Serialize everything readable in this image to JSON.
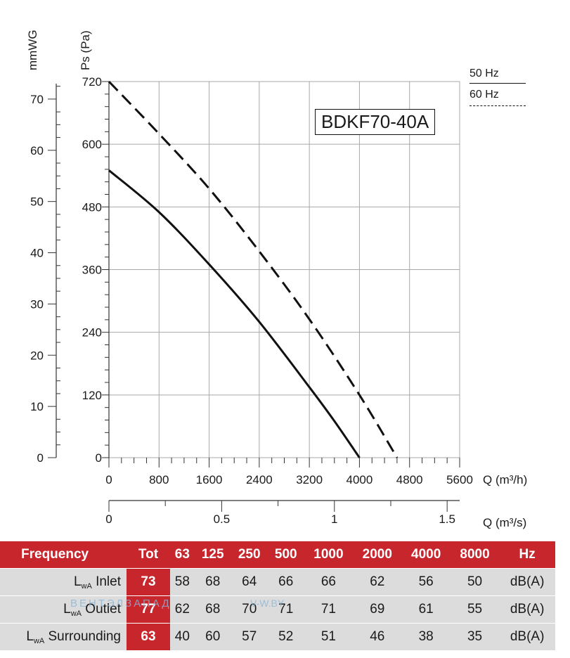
{
  "chart_data": {
    "type": "line",
    "title": "BDKF70-40A",
    "xlabel": "Q (m³/h)",
    "x2label": "Q (m³/s)",
    "ylabel": "Ps (Pa)",
    "y2label": "mmWG",
    "xlim": [
      0,
      5600
    ],
    "ylim": [
      0,
      720
    ],
    "x_ticks": [
      "0",
      "800",
      "1600",
      "2400",
      "3200",
      "4000",
      "4800",
      "5600"
    ],
    "y_ticks": [
      "0",
      "120",
      "240",
      "360",
      "480",
      "600",
      "720"
    ],
    "mmwg_ticks": [
      "0",
      "10",
      "20",
      "30",
      "40",
      "50",
      "60",
      "70"
    ],
    "m3s_ticks": [
      "0",
      "0.5",
      "1",
      "1.5"
    ],
    "grid": true,
    "series": [
      {
        "name": "50 Hz",
        "style": "solid",
        "x": [
          0,
          800,
          1600,
          2400,
          3200,
          3600,
          4000
        ],
        "y": [
          550,
          470,
          370,
          260,
          135,
          70,
          0
        ]
      },
      {
        "name": "60 Hz",
        "style": "dashed",
        "x": [
          0,
          800,
          1600,
          2400,
          3200,
          4000,
          4600
        ],
        "y": [
          720,
          620,
          515,
          395,
          265,
          120,
          0
        ]
      }
    ]
  },
  "legend": {
    "hz50": "50 Hz",
    "hz60": "60 Hz"
  },
  "noise_table": {
    "header": [
      "Frequency",
      "Tot",
      "63",
      "125",
      "250",
      "500",
      "1000",
      "2000",
      "4000",
      "8000",
      "Hz"
    ],
    "rows": [
      {
        "label_sub": "wA",
        "label_rest": " Inlet",
        "tot": "73",
        "values": [
          "58",
          "68",
          "64",
          "66",
          "66",
          "62",
          "56",
          "50"
        ],
        "unit": "dB(A)"
      },
      {
        "label_sub": "wA",
        "label_rest": " Outlet",
        "tot": "77",
        "values": [
          "62",
          "68",
          "70",
          "71",
          "71",
          "69",
          "61",
          "55"
        ],
        "unit": "dB(A)"
      },
      {
        "label_sub": "wA",
        "label_rest": " Surrounding",
        "tot": "63",
        "values": [
          "40",
          "60",
          "57",
          "52",
          "51",
          "46",
          "38",
          "35"
        ],
        "unit": "dB(A)"
      }
    ],
    "label_prefix": "L"
  },
  "watermark": {
    "text1": "ВЕНТЭЛЗАПАД",
    "text2": "V-W.BY"
  }
}
